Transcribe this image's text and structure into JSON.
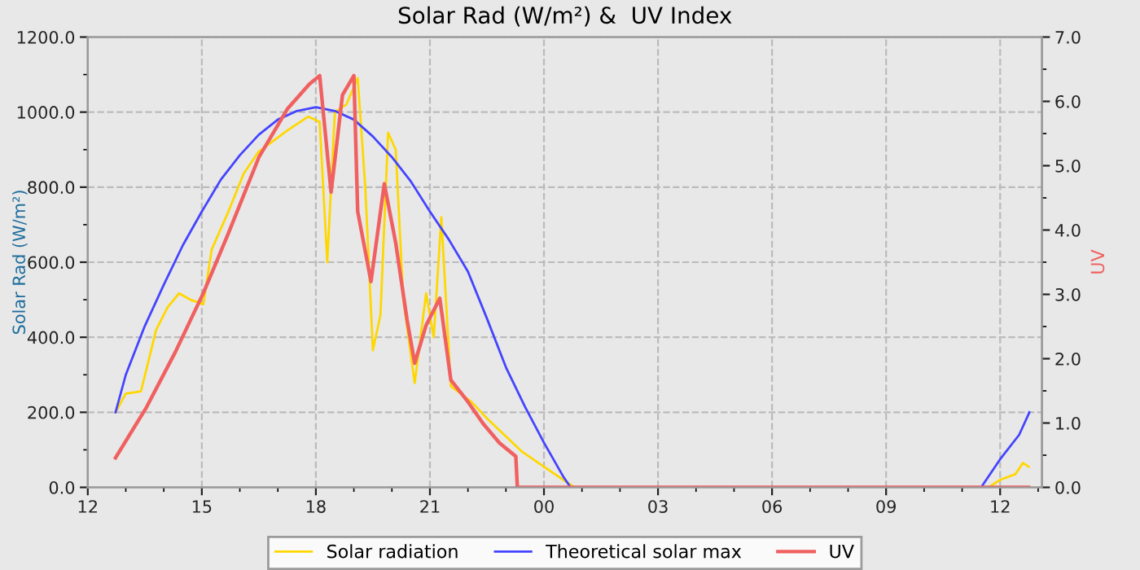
{
  "chart_data": {
    "type": "line",
    "title": "Solar Rad (W/m²) &  UV Index",
    "ylabel": "Solar Rad (W/m²)",
    "y2label": "UV",
    "xlim": [
      12,
      37.1
    ],
    "xticks": [
      {
        "value": 12,
        "label": "12"
      },
      {
        "value": 15,
        "label": "15"
      },
      {
        "value": 18,
        "label": "18"
      },
      {
        "value": 21,
        "label": "21"
      },
      {
        "value": 24,
        "label": "00"
      },
      {
        "value": 27,
        "label": "03"
      },
      {
        "value": 30,
        "label": "06"
      },
      {
        "value": 33,
        "label": "09"
      },
      {
        "value": 36,
        "label": "12"
      }
    ],
    "ylim": [
      0,
      1200
    ],
    "yticks": [
      {
        "value": 0,
        "label": "0.0"
      },
      {
        "value": 200,
        "label": "200.0"
      },
      {
        "value": 400,
        "label": "400.0"
      },
      {
        "value": 600,
        "label": "600.0"
      },
      {
        "value": 800,
        "label": "800.0"
      },
      {
        "value": 1000,
        "label": "1000.0"
      },
      {
        "value": 1200,
        "label": "1200.0"
      }
    ],
    "y2lim": [
      0,
      7
    ],
    "y2ticks": [
      {
        "value": 0,
        "label": "0.0"
      },
      {
        "value": 1,
        "label": "1.0"
      },
      {
        "value": 2,
        "label": "2.0"
      },
      {
        "value": 3,
        "label": "3.0"
      },
      {
        "value": 4,
        "label": "4.0"
      },
      {
        "value": 5,
        "label": "5.0"
      },
      {
        "value": 6,
        "label": "6.0"
      },
      {
        "value": 7,
        "label": "7.0"
      }
    ],
    "grid": true,
    "legend": "bottom",
    "line_style": "solid",
    "marker": "none",
    "series": [
      {
        "name": "Solar radiation",
        "color": "#ffd700",
        "x": [
          12.73,
          13.0,
          13.4,
          13.8,
          14.1,
          14.4,
          14.7,
          15.04,
          15.26,
          15.7,
          16.1,
          16.5,
          17.26,
          17.8,
          18.1,
          18.3,
          18.5,
          18.8,
          19.1,
          19.3,
          19.5,
          19.7,
          19.9,
          20.1,
          20.3,
          20.6,
          20.9,
          21.1,
          21.3,
          21.55,
          22.1,
          22.5,
          23.4,
          24.1,
          24.8,
          35.7,
          36.0,
          36.4,
          36.6,
          36.75
        ],
        "values": [
          200,
          250,
          256,
          420,
          480,
          517,
          500,
          488,
          634,
          735,
          836,
          895,
          952,
          988,
          974,
          600,
          1000,
          1020,
          1091,
          800,
          365,
          460,
          945,
          900,
          500,
          278,
          517,
          400,
          720,
          270,
          227,
          184,
          97,
          48,
          0,
          0,
          20,
          35,
          65,
          55
        ]
      },
      {
        "name": "Theoretical solar max",
        "color": "#4444ff",
        "x": [
          12.73,
          13.0,
          13.5,
          14.0,
          14.5,
          15.0,
          15.5,
          16.0,
          16.5,
          17.0,
          17.5,
          18.0,
          18.5,
          19.0,
          19.5,
          20.0,
          20.5,
          21.0,
          21.5,
          22.0,
          22.5,
          23.0,
          23.5,
          24.0,
          24.5,
          24.7,
          35.5,
          36.0,
          36.5,
          36.77
        ],
        "values": [
          200,
          300,
          430,
          540,
          645,
          735,
          820,
          885,
          940,
          980,
          1003,
          1013,
          1003,
          980,
          935,
          880,
          815,
          735,
          660,
          575,
          450,
          320,
          215,
          119,
          30,
          0,
          0,
          75,
          140,
          200
        ]
      },
      {
        "name": "UV",
        "color": "#f06060",
        "axis": "y2",
        "x": [
          12.73,
          13.54,
          14.3,
          15.04,
          15.7,
          16.5,
          17.26,
          17.83,
          18.1,
          18.4,
          18.7,
          19.0,
          19.1,
          19.45,
          19.8,
          20.1,
          20.4,
          20.6,
          20.9,
          21.26,
          21.55,
          22.0,
          22.4,
          22.83,
          23.26,
          23.3,
          36.75
        ],
        "values": [
          0.46,
          1.24,
          2.1,
          3.02,
          3.95,
          5.13,
          5.89,
          6.27,
          6.4,
          4.59,
          6.1,
          6.4,
          4.29,
          3.2,
          4.72,
          3.8,
          2.6,
          1.93,
          2.52,
          2.94,
          1.67,
          1.33,
          0.99,
          0.69,
          0.48,
          0,
          0
        ]
      }
    ]
  }
}
